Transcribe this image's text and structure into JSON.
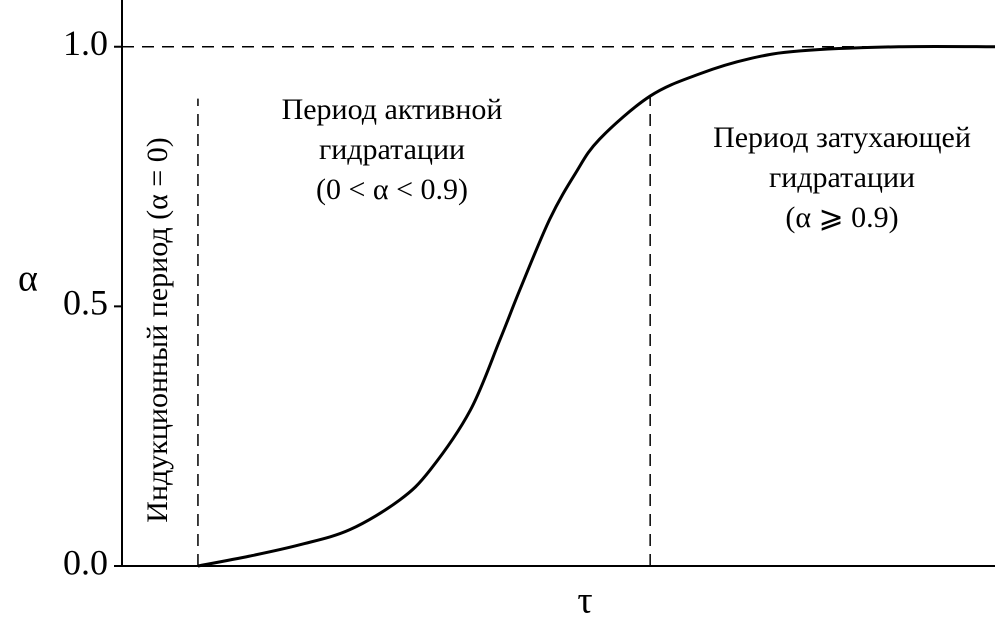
{
  "chart_data": {
    "type": "line",
    "x_label": "τ",
    "y_label": "α",
    "x": [
      8.7,
      14.6,
      20.4,
      26.1,
      31.8,
      35.3,
      39.9,
      43.3,
      45.6,
      49,
      51.9,
      54.7,
      60.5,
      66.2,
      71.9,
      77.7,
      89,
      100
    ],
    "values": [
      0,
      0.019,
      0.041,
      0.07,
      0.127,
      0.185,
      0.3,
      0.436,
      0.533,
      0.668,
      0.755,
      0.822,
      0.905,
      0.948,
      0.977,
      0.992,
      1.0,
      1.0
    ],
    "color": "#000000",
    "xlim": [
      0,
      100
    ],
    "ylim": [
      0,
      1.09
    ],
    "yticks": [
      {
        "value": 0,
        "label": "0.0"
      },
      {
        "value": 0.5,
        "label": "0.5"
      },
      {
        "value": 1.0,
        "label": "1.0"
      }
    ],
    "hline": 1.0,
    "vlines": [
      {
        "x": 8.7,
        "y": 0.9
      },
      {
        "x": 60.5,
        "y": 0.905
      }
    ],
    "annotations": [
      [
        "Индукционный период (α = 0)"
      ],
      [
        "Период активной",
        "гидратации",
        "(0 < α < 0.9)"
      ],
      [
        "Период затухающей",
        "гидратации",
        "(α ⩾ 0.9)"
      ]
    ]
  }
}
